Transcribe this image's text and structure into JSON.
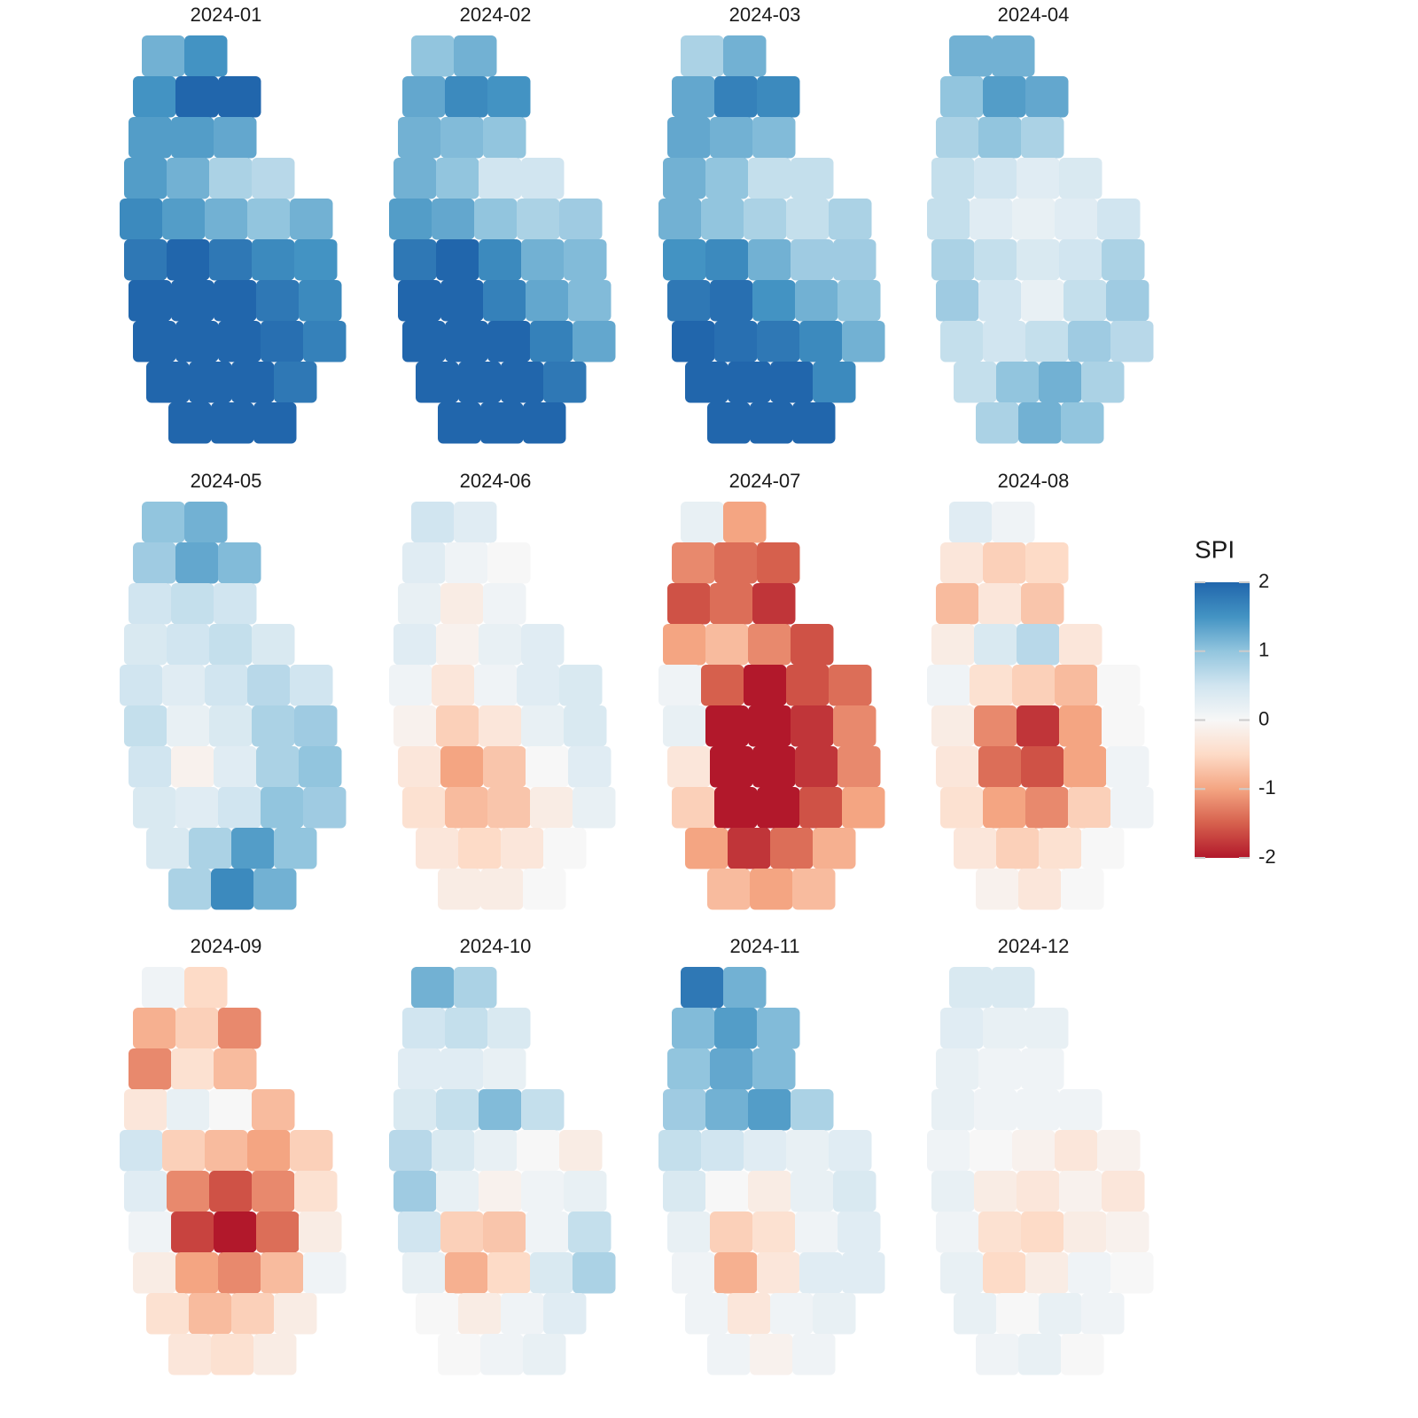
{
  "chart_data": {
    "type": "hexmap",
    "legend": {
      "title": "SPI",
      "lim": [
        -2,
        2
      ],
      "ticks": [
        2,
        1,
        0,
        -1,
        -2
      ],
      "colors": [
        "#b2182b",
        "#d6604d",
        "#f4a582",
        "#fddbc7",
        "#f7f7f7",
        "#d1e5f0",
        "#92c5de",
        "#4393c3",
        "#2166ac"
      ]
    },
    "facets": [
      {
        "title": "2024-01",
        "values": [
          [
            1.2,
            1.5
          ],
          [
            1.5,
            2,
            2
          ],
          [
            1.4,
            1.4,
            1.3
          ],
          [
            1.4,
            1.2,
            0.8,
            0.7
          ],
          [
            1.6,
            1.4,
            1.2,
            1.0,
            1.2
          ],
          [
            1.8,
            2,
            1.8,
            1.6,
            1.5
          ],
          [
            2,
            2,
            2,
            1.8,
            1.6
          ],
          [
            2,
            2,
            2,
            1.9,
            1.7
          ],
          [
            2,
            2,
            2,
            1.8
          ],
          [
            2,
            2,
            2
          ]
        ]
      },
      {
        "title": "2024-02",
        "values": [
          [
            1,
            1.2
          ],
          [
            1.3,
            1.6,
            1.5
          ],
          [
            1.2,
            1.1,
            1.0
          ],
          [
            1.2,
            1.0,
            0.5,
            0.5
          ],
          [
            1.4,
            1.3,
            1.0,
            0.8,
            0.9
          ],
          [
            1.8,
            2,
            1.6,
            1.2,
            1.1
          ],
          [
            2,
            2,
            1.7,
            1.3,
            1.1
          ],
          [
            2,
            2,
            2,
            1.7,
            1.3
          ],
          [
            2,
            2,
            2,
            1.8
          ],
          [
            2,
            2,
            2
          ]
        ]
      },
      {
        "title": "2024-03",
        "values": [
          [
            0.8,
            1.2
          ],
          [
            1.3,
            1.7,
            1.6
          ],
          [
            1.3,
            1.2,
            1.1
          ],
          [
            1.2,
            1.0,
            0.6,
            0.6
          ],
          [
            1.2,
            1.0,
            0.8,
            0.6,
            0.8
          ],
          [
            1.5,
            1.6,
            1.2,
            0.9,
            0.9
          ],
          [
            1.8,
            1.9,
            1.5,
            1.2,
            1.0
          ],
          [
            2,
            1.9,
            1.8,
            1.6,
            1.2
          ],
          [
            2,
            2,
            2,
            1.6
          ],
          [
            2,
            2,
            2
          ]
        ]
      },
      {
        "title": "2024-04",
        "values": [
          [
            1.2,
            1.2
          ],
          [
            1.0,
            1.4,
            1.3
          ],
          [
            0.8,
            1.0,
            0.8
          ],
          [
            0.6,
            0.5,
            0.3,
            0.4
          ],
          [
            0.6,
            0.3,
            0.2,
            0.3,
            0.5
          ],
          [
            0.8,
            0.6,
            0.4,
            0.5,
            0.8
          ],
          [
            0.9,
            0.5,
            0.2,
            0.6,
            0.9
          ],
          [
            0.6,
            0.5,
            0.6,
            0.9,
            0.7
          ],
          [
            0.6,
            1.0,
            1.2,
            0.8
          ],
          [
            0.8,
            1.2,
            1.0
          ]
        ]
      },
      {
        "title": "2024-05",
        "values": [
          [
            1.0,
            1.2
          ],
          [
            0.9,
            1.3,
            1.1
          ],
          [
            0.5,
            0.6,
            0.5
          ],
          [
            0.4,
            0.5,
            0.6,
            0.4
          ],
          [
            0.5,
            0.3,
            0.5,
            0.7,
            0.5
          ],
          [
            0.6,
            0.2,
            0.4,
            0.8,
            0.9
          ],
          [
            0.5,
            -0.1,
            0.3,
            0.8,
            1.0
          ],
          [
            0.4,
            0.3,
            0.5,
            1.0,
            0.9
          ],
          [
            0.4,
            0.8,
            1.4,
            1.0
          ],
          [
            0.8,
            1.6,
            1.2
          ]
        ]
      },
      {
        "title": "2024-06",
        "values": [
          [
            0.5,
            0.3
          ],
          [
            0.3,
            0.1,
            0.0
          ],
          [
            0.2,
            -0.2,
            0.1
          ],
          [
            0.3,
            -0.1,
            0.2,
            0.3
          ],
          [
            0.1,
            -0.3,
            0.1,
            0.3,
            0.4
          ],
          [
            -0.1,
            -0.6,
            -0.3,
            0.2,
            0.4
          ],
          [
            -0.3,
            -1.0,
            -0.7,
            0.0,
            0.3
          ],
          [
            -0.4,
            -0.8,
            -0.7,
            -0.2,
            0.2
          ],
          [
            -0.3,
            -0.5,
            -0.3,
            0.0
          ],
          [
            -0.2,
            -0.2,
            0.0
          ]
        ]
      },
      {
        "title": "2024-07",
        "values": [
          [
            0.2,
            -1.0
          ],
          [
            -1.2,
            -1.4,
            -1.5
          ],
          [
            -1.6,
            -1.4,
            -1.8
          ],
          [
            -1.0,
            -0.8,
            -1.2,
            -1.6
          ],
          [
            0.1,
            -1.5,
            -2,
            -1.6,
            -1.4
          ],
          [
            0.2,
            -2,
            -2,
            -1.8,
            -1.2
          ],
          [
            -0.3,
            -2,
            -2,
            -1.8,
            -1.2
          ],
          [
            -0.6,
            -2,
            -2,
            -1.6,
            -1.0
          ],
          [
            -1.0,
            -1.8,
            -1.4,
            -0.9
          ],
          [
            -0.8,
            -1.0,
            -0.8
          ]
        ]
      },
      {
        "title": "2024-08",
        "values": [
          [
            0.3,
            0.1
          ],
          [
            -0.3,
            -0.6,
            -0.5
          ],
          [
            -0.8,
            -0.3,
            -0.7
          ],
          [
            -0.2,
            0.4,
            0.7,
            -0.3
          ],
          [
            0.1,
            -0.4,
            -0.6,
            -0.8,
            0.0
          ],
          [
            -0.2,
            -1.2,
            -1.8,
            -1.0,
            0.0
          ],
          [
            -0.3,
            -1.4,
            -1.6,
            -1.0,
            0.1
          ],
          [
            -0.4,
            -1.0,
            -1.2,
            -0.6,
            0.1
          ],
          [
            -0.3,
            -0.6,
            -0.4,
            0.0
          ],
          [
            -0.1,
            -0.3,
            0.0
          ]
        ]
      },
      {
        "title": "2024-09",
        "values": [
          [
            0.1,
            -0.5
          ],
          [
            -0.9,
            -0.6,
            -1.2
          ],
          [
            -1.2,
            -0.4,
            -0.8
          ],
          [
            -0.3,
            0.2,
            0.0,
            -0.8
          ],
          [
            0.5,
            -0.6,
            -0.8,
            -1.0,
            -0.6
          ],
          [
            0.3,
            -1.2,
            -1.6,
            -1.2,
            -0.4
          ],
          [
            0.1,
            -1.7,
            -2,
            -1.4,
            -0.2
          ],
          [
            -0.2,
            -1.0,
            -1.2,
            -0.8,
            0.1
          ],
          [
            -0.4,
            -0.8,
            -0.6,
            -0.2
          ],
          [
            -0.3,
            -0.4,
            -0.2
          ]
        ]
      },
      {
        "title": "2024-10",
        "values": [
          [
            1.2,
            0.8
          ],
          [
            0.5,
            0.6,
            0.4
          ],
          [
            0.3,
            0.3,
            0.2
          ],
          [
            0.4,
            0.6,
            1.1,
            0.6
          ],
          [
            0.7,
            0.4,
            0.2,
            0.0,
            -0.2
          ],
          [
            0.9,
            0.2,
            -0.1,
            0.1,
            0.2
          ],
          [
            0.5,
            -0.6,
            -0.7,
            0.1,
            0.6
          ],
          [
            0.2,
            -0.9,
            -0.5,
            0.4,
            0.8
          ],
          [
            0.0,
            -0.2,
            0.1,
            0.3
          ],
          [
            0.0,
            0.1,
            0.2
          ]
        ]
      },
      {
        "title": "2024-11",
        "values": [
          [
            1.8,
            1.2
          ],
          [
            1.1,
            1.4,
            1.1
          ],
          [
            1.0,
            1.3,
            1.1
          ],
          [
            0.9,
            1.2,
            1.4,
            0.8
          ],
          [
            0.6,
            0.5,
            0.3,
            0.2,
            0.3
          ],
          [
            0.4,
            0.0,
            -0.2,
            0.2,
            0.4
          ],
          [
            0.2,
            -0.6,
            -0.4,
            0.1,
            0.3
          ],
          [
            0.1,
            -0.9,
            -0.3,
            0.3,
            0.3
          ],
          [
            0.1,
            -0.3,
            0.1,
            0.2
          ],
          [
            0.1,
            -0.1,
            0.1
          ]
        ]
      },
      {
        "title": "2024-12",
        "values": [
          [
            0.4,
            0.4
          ],
          [
            0.3,
            0.2,
            0.2
          ],
          [
            0.2,
            0.1,
            0.1
          ],
          [
            0.2,
            0.1,
            0.1,
            0.1
          ],
          [
            0.1,
            0.0,
            -0.1,
            -0.3,
            -0.1
          ],
          [
            0.2,
            -0.2,
            -0.3,
            -0.1,
            -0.3
          ],
          [
            0.1,
            -0.4,
            -0.5,
            -0.2,
            -0.1
          ],
          [
            0.2,
            -0.5,
            -0.2,
            0.1,
            0.0
          ],
          [
            0.2,
            0.0,
            0.2,
            0.1
          ],
          [
            0.1,
            0.2,
            0.0
          ]
        ]
      }
    ]
  }
}
